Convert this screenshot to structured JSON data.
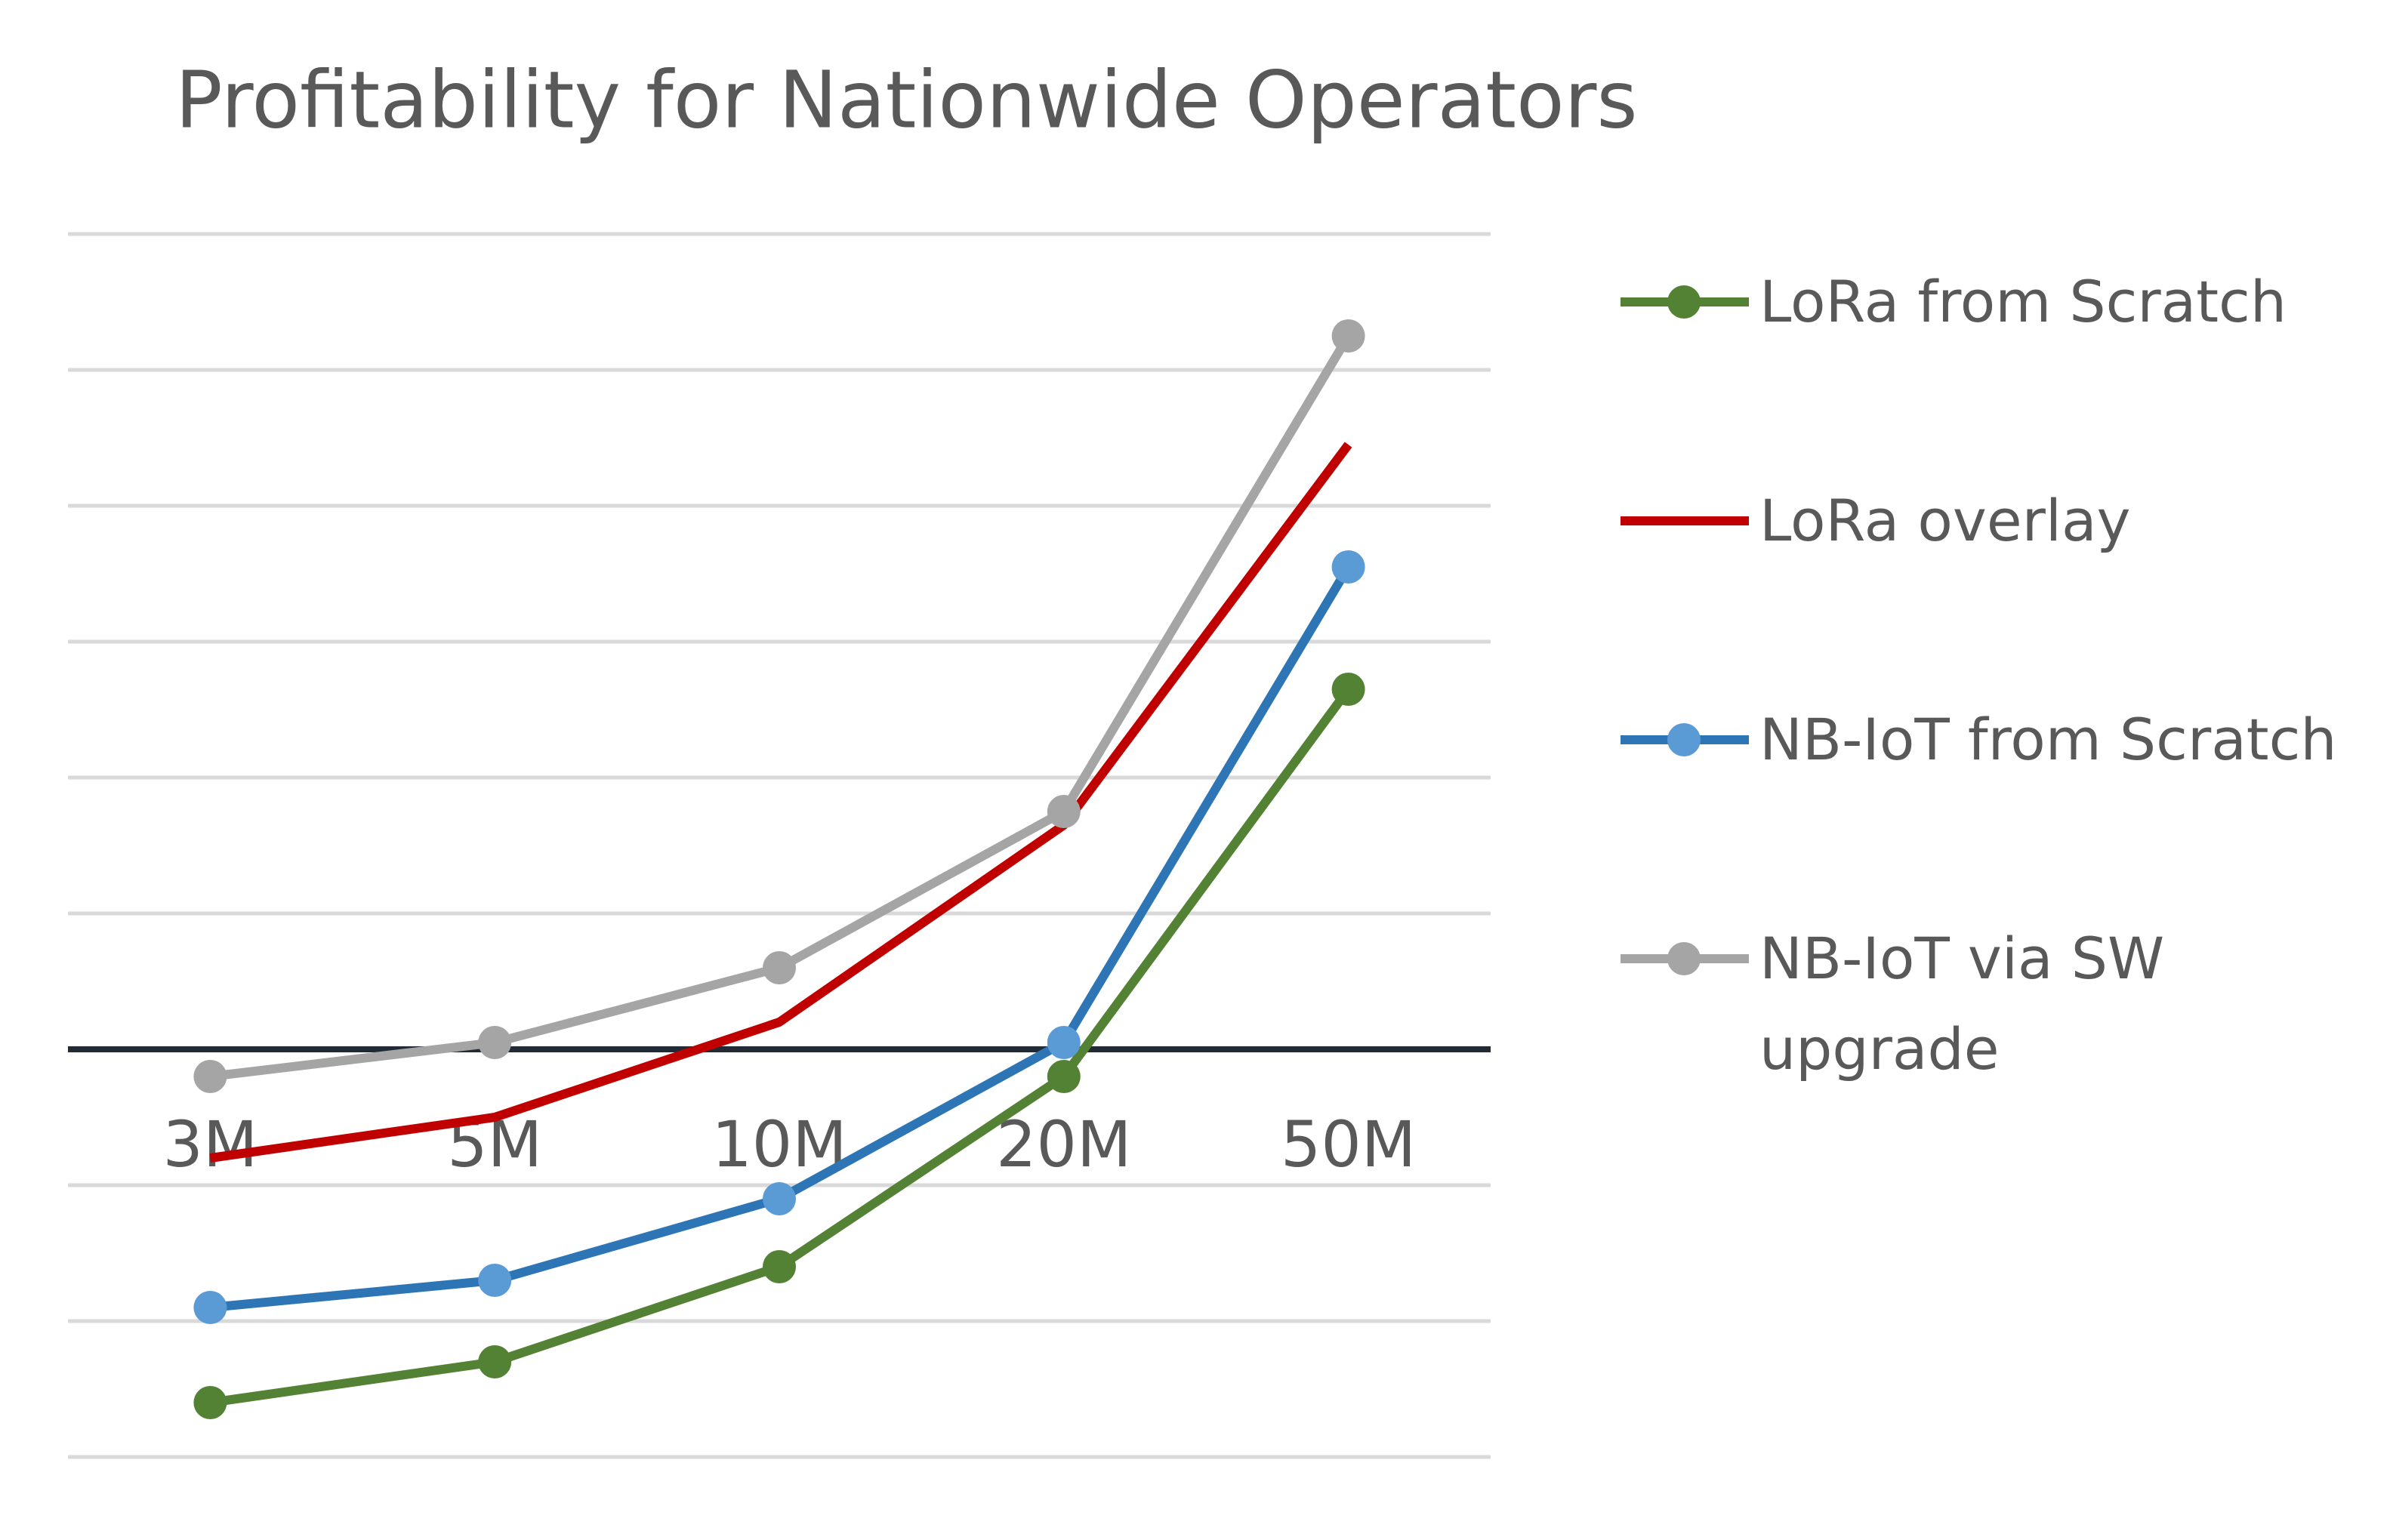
{
  "chart_data": {
    "type": "line",
    "title": "Profitability for Nationwide Operators",
    "categories": [
      "3M",
      "5M",
      "10M",
      "20M",
      "50M"
    ],
    "series": [
      {
        "name": "LoRa from Scratch",
        "color": "#548235",
        "marker_color": "#548235",
        "marker": true,
        "values": [
          -2.6,
          -2.3,
          -1.6,
          -0.2,
          2.65
        ]
      },
      {
        "name": "LoRa overlay",
        "color": "#c00000",
        "marker": false,
        "values": [
          -0.8,
          -0.5,
          0.2,
          1.65,
          4.45
        ]
      },
      {
        "name": "NB-IoT from Scratch",
        "color": "#2e75b6",
        "marker_color": "#5b9bd5",
        "marker": true,
        "values": [
          -1.9,
          -1.7,
          -1.1,
          0.05,
          3.55
        ]
      },
      {
        "name": "NB-IoT via SW upgrade",
        "color": "#a5a5a5",
        "marker_color": "#a5a5a5",
        "marker": true,
        "values": [
          -0.2,
          0.05,
          0.6,
          1.75,
          5.25
        ]
      }
    ],
    "ylim": [
      -3,
      6
    ],
    "yticks": [
      -3,
      -2,
      -1,
      0,
      1,
      2,
      3,
      4,
      5,
      6
    ],
    "grid": true,
    "legend": "right"
  }
}
